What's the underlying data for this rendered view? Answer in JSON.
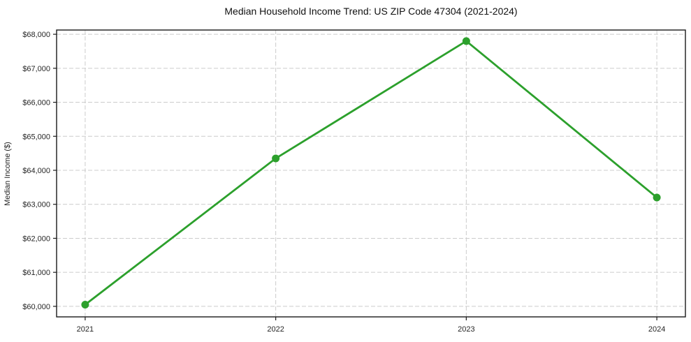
{
  "chart_data": {
    "type": "line",
    "title": "Median Household Income Trend: US ZIP Code 47304 (2021-2024)",
    "xlabel": "",
    "ylabel": "Median Income ($)",
    "categories": [
      "2021",
      "2022",
      "2023",
      "2024"
    ],
    "values": [
      60050,
      64350,
      67800,
      63200
    ],
    "yticks": [
      60000,
      61000,
      62000,
      63000,
      64000,
      65000,
      66000,
      67000,
      68000
    ],
    "ytick_labels": [
      "$60,000",
      "$61,000",
      "$62,000",
      "$63,000",
      "$64,000",
      "$65,000",
      "$66,000",
      "$67,000",
      "$68,000"
    ],
    "ylim": [
      59690,
      68125
    ],
    "xlim": [
      -0.15,
      3.15
    ],
    "grid": true,
    "grid_style": "dashed",
    "legend": "none",
    "marker": "circle",
    "colors": {
      "line": "#2ca02c",
      "grid": "#cccccc",
      "axis": "#1a1a1a",
      "text": "#262626",
      "background": "#ffffff"
    }
  }
}
